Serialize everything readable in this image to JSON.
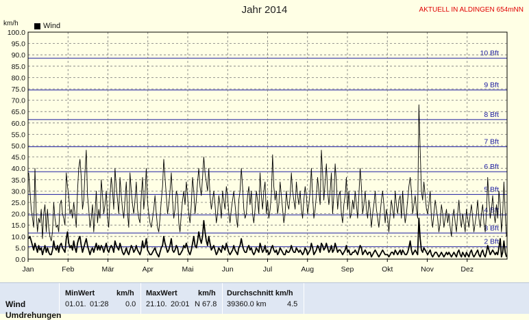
{
  "header": {
    "title": "Jahr 2014",
    "station": "AKTUELL IN ALDINGEN 654mNN",
    "unit": "km/h",
    "legend_label": "Wind"
  },
  "colors": {
    "background": "#ffffe5",
    "bft_lines": "#1a1aa0",
    "series_max": "#000000",
    "series_avg": "#000000",
    "station_text": "#e00000"
  },
  "chart_data": {
    "type": "line",
    "title": "Jahr 2014",
    "ylabel": "km/h",
    "ylim": [
      0,
      100
    ],
    "yticks": [
      "0.0",
      "5.0",
      "10.0",
      "15.0",
      "20.0",
      "25.0",
      "30.0",
      "35.0",
      "40.0",
      "45.0",
      "50.0",
      "55.0",
      "60.0",
      "65.0",
      "70.0",
      "75.0",
      "80.0",
      "85.0",
      "90.0",
      "95.0",
      "100.0"
    ],
    "months": [
      "Jan",
      "Feb",
      "Mär",
      "Apr",
      "Mai",
      "Jun",
      "Jul",
      "Aug",
      "Sep",
      "Okt",
      "Nov",
      "Dez"
    ],
    "beaufort": [
      {
        "label": "2 Bft",
        "value": 5.5
      },
      {
        "label": "3 Bft",
        "value": 11.5
      },
      {
        "label": "4 Bft",
        "value": 19.5
      },
      {
        "label": "5 Bft",
        "value": 28.5
      },
      {
        "label": "6 Bft",
        "value": 38.5
      },
      {
        "label": "7 Bft",
        "value": 49.5
      },
      {
        "label": "8 Bft",
        "value": 61.5
      },
      {
        "label": "9 Bft",
        "value": 74.5
      },
      {
        "label": "10 Bft",
        "value": 88.5
      }
    ],
    "series": [
      {
        "name": "Wind",
        "values": [
          38,
          30,
          22,
          18,
          14,
          40,
          20,
          12,
          18,
          16,
          22,
          9,
          20,
          24,
          12,
          22,
          14,
          10,
          8,
          12,
          25,
          18,
          14,
          15,
          12,
          24,
          26,
          20,
          18,
          15,
          38,
          32,
          28,
          20,
          22,
          18,
          25,
          20,
          14,
          30,
          40,
          44,
          36,
          22,
          26,
          38,
          48,
          28,
          22,
          14,
          18,
          24,
          12,
          20,
          30,
          16,
          22,
          18,
          35,
          28,
          20,
          24,
          30,
          18,
          14,
          28,
          36,
          30,
          22,
          40,
          32,
          26,
          20,
          36,
          28,
          22,
          18,
          26,
          34,
          20,
          14,
          38,
          30,
          24,
          20,
          26,
          34,
          22,
          18,
          16,
          28,
          36,
          22,
          28,
          40,
          25,
          20,
          16,
          14,
          18,
          22,
          28,
          20,
          14,
          12,
          18,
          26,
          32,
          44,
          36,
          28,
          20,
          24,
          30,
          38,
          26,
          18,
          22,
          30,
          28,
          16,
          12,
          20,
          26,
          30,
          24,
          34,
          28,
          20,
          16,
          24,
          36,
          30,
          20,
          26,
          34,
          40,
          32,
          28,
          36,
          45,
          38,
          34,
          30,
          40,
          28,
          22,
          26,
          30,
          24,
          16,
          20,
          28,
          24,
          18,
          30,
          26,
          22,
          32,
          28,
          20,
          16,
          22,
          26,
          30,
          24,
          18,
          14,
          26,
          30,
          40,
          32,
          22,
          18,
          20,
          28,
          32,
          24,
          30,
          20,
          16,
          22,
          30,
          26,
          20,
          38,
          28,
          22,
          30,
          34,
          20,
          26,
          18,
          22,
          28,
          46,
          32,
          26,
          30,
          20,
          24,
          34,
          28,
          22,
          16,
          20,
          30,
          24,
          22,
          28,
          38,
          30,
          26,
          22,
          34,
          28,
          24,
          30,
          22,
          18,
          26,
          32,
          28,
          20,
          24,
          30,
          40,
          28,
          18,
          22,
          28,
          36,
          30,
          24,
          48,
          38,
          26,
          34,
          42,
          30,
          24,
          30,
          38,
          20,
          28,
          42,
          34,
          22,
          28,
          30,
          20,
          16,
          24,
          28,
          36,
          22,
          30,
          18,
          20,
          26,
          22,
          30,
          24,
          18,
          28,
          40,
          32,
          20,
          24,
          30,
          22,
          18,
          26,
          22,
          14,
          20,
          24,
          30,
          22,
          18,
          14,
          20,
          26,
          30,
          24,
          16,
          22,
          18,
          12,
          20,
          26,
          22,
          18,
          30,
          24,
          20,
          26,
          28,
          18,
          30,
          22,
          16,
          20,
          26,
          32,
          36,
          30,
          20,
          24,
          28,
          22,
          18,
          68,
          48,
          30,
          26,
          34,
          28,
          22,
          20,
          24,
          30,
          18,
          14,
          20,
          26,
          22,
          18,
          12,
          16,
          24,
          20,
          14,
          18,
          22,
          16,
          20,
          14,
          10,
          18,
          22,
          16,
          12,
          20,
          26,
          18,
          14,
          20,
          16,
          12,
          22,
          18,
          14,
          20,
          24,
          18,
          12,
          16,
          20,
          26,
          18,
          14,
          20,
          24,
          16,
          12,
          20,
          36,
          26,
          18,
          22,
          28,
          20,
          16,
          24,
          18,
          30,
          24,
          12,
          20,
          34,
          20,
          10
        ]
      },
      {
        "name": "",
        "values": [
          9,
          10,
          8,
          6,
          4,
          7,
          5,
          3,
          6,
          4,
          5,
          2,
          4,
          6,
          3,
          5,
          3,
          2,
          2,
          4,
          8,
          5,
          4,
          6,
          3,
          6,
          7,
          5,
          4,
          3,
          9,
          12,
          7,
          5,
          6,
          4,
          8,
          5,
          3,
          7,
          9,
          10,
          6,
          3,
          5,
          7,
          9,
          6,
          4,
          2,
          4,
          5,
          3,
          5,
          7,
          4,
          6,
          4,
          6,
          5,
          3,
          5,
          7,
          4,
          3,
          5,
          6,
          5,
          3,
          8,
          6,
          5,
          4,
          7,
          5,
          3,
          2,
          3,
          5,
          3,
          2,
          4,
          6,
          5,
          3,
          4,
          6,
          4,
          3,
          2,
          4,
          8,
          5,
          6,
          9,
          4,
          3,
          2,
          2,
          3,
          4,
          5,
          3,
          2,
          1,
          3,
          5,
          6,
          10,
          7,
          5,
          3,
          4,
          6,
          9,
          4,
          3,
          4,
          6,
          5,
          2,
          2,
          3,
          4,
          6,
          5,
          7,
          5,
          3,
          2,
          4,
          7,
          10,
          6,
          5,
          8,
          12,
          9,
          7,
          10,
          17,
          12,
          8,
          6,
          10,
          7,
          4,
          5,
          6,
          4,
          2,
          3,
          5,
          4,
          3,
          6,
          5,
          4,
          7,
          5,
          3,
          2,
          3,
          4,
          6,
          4,
          3,
          2,
          5,
          6,
          9,
          6,
          4,
          3,
          3,
          5,
          6,
          4,
          5,
          3,
          2,
          3,
          5,
          4,
          3,
          7,
          5,
          3,
          4,
          6,
          3,
          4,
          2,
          3,
          5,
          6,
          4,
          3,
          4,
          2,
          3,
          5,
          4,
          3,
          2,
          2,
          4,
          3,
          3,
          4,
          6,
          4,
          3,
          3,
          5,
          4,
          3,
          4,
          3,
          2,
          3,
          5,
          4,
          2,
          3,
          4,
          7,
          5,
          2,
          3,
          4,
          6,
          5,
          3,
          7,
          6,
          4,
          5,
          7,
          5,
          3,
          4,
          6,
          3,
          4,
          7,
          5,
          3,
          4,
          4,
          3,
          2,
          3,
          4,
          6,
          3,
          4,
          2,
          2,
          3,
          3,
          4,
          3,
          2,
          4,
          6,
          5,
          2,
          3,
          4,
          3,
          2,
          3,
          3,
          1,
          2,
          3,
          4,
          3,
          2,
          1,
          2,
          3,
          4,
          3,
          2,
          2,
          2,
          1,
          2,
          3,
          3,
          2,
          4,
          3,
          2,
          3,
          4,
          2,
          4,
          3,
          2,
          2,
          3,
          5,
          8,
          4,
          2,
          3,
          4,
          3,
          2,
          18,
          9,
          4,
          3,
          5,
          4,
          3,
          2,
          3,
          4,
          2,
          1,
          2,
          3,
          3,
          2,
          1,
          2,
          3,
          2,
          1,
          2,
          3,
          2,
          3,
          2,
          1,
          2,
          3,
          2,
          1,
          3,
          4,
          2,
          1,
          3,
          2,
          1,
          3,
          2,
          1,
          3,
          4,
          2,
          1,
          2,
          3,
          4,
          2,
          1,
          3,
          4,
          2,
          1,
          3,
          6,
          4,
          2,
          3,
          4,
          3,
          2,
          3,
          2,
          5,
          9,
          1,
          3,
          8,
          3,
          1
        ]
      }
    ]
  },
  "stats": {
    "row_label": "Wind",
    "row_label2": "Umdrehungen",
    "min": {
      "header": "MinWert",
      "unit": "km/h",
      "date": "01.01.",
      "time": "01:28",
      "value": "0.0"
    },
    "max": {
      "header": "MaxWert",
      "unit": "km/h",
      "date": "21.10.",
      "time": "20:01",
      "dir_value": "N 67.8"
    },
    "avg": {
      "header": "Durchschnitt km/h",
      "distance": "39360.0 km",
      "value": "4.5"
    }
  }
}
